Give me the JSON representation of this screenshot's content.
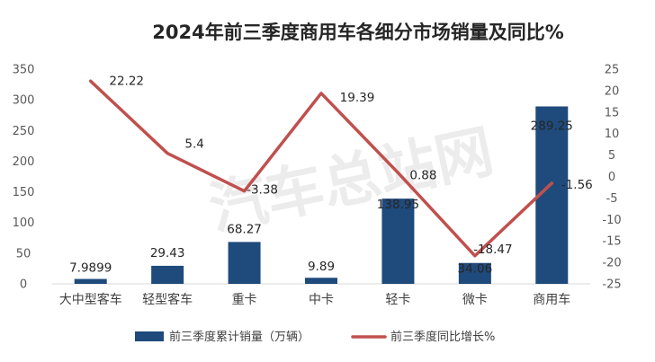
{
  "chart_data": {
    "type": "bar",
    "title": "2024年前三季度商用车各细分市场销量及同比%",
    "categories": [
      "大中型客车",
      "轻型客车",
      "重卡",
      "中卡",
      "轻卡",
      "微卡",
      "商用车"
    ],
    "series": [
      {
        "name": "前三季度累计销量（万辆）",
        "type": "bar",
        "axis": "left",
        "values": [
          7.9899,
          29.43,
          68.27,
          9.89,
          138.95,
          34.06,
          289.25
        ],
        "labels": [
          "7.9899",
          "29.43",
          "68.27",
          "9.89",
          "138.95",
          "34.06",
          "289.25"
        ],
        "color": "#1f4a7c"
      },
      {
        "name": "前三季度同比增长%",
        "type": "line",
        "axis": "right",
        "values": [
          22.22,
          5.4,
          -3.38,
          19.39,
          0.88,
          -18.47,
          -1.56
        ],
        "labels": [
          "22.22",
          "5.4",
          "-3.38",
          "19.39",
          "0.88",
          "-18.47",
          "-1.56"
        ],
        "color": "#c0504d"
      }
    ],
    "y_left": {
      "min": 0,
      "max": 350,
      "ticks": [
        "0",
        "50",
        "100",
        "150",
        "200",
        "250",
        "300",
        "350"
      ]
    },
    "y_right": {
      "min": -25,
      "max": 25,
      "ticks": [
        "-25",
        "-20",
        "-15",
        "-10",
        "-5",
        "0",
        "5",
        "10",
        "15",
        "20",
        "25"
      ]
    },
    "grid": false,
    "legend_position": "bottom"
  },
  "watermark": "汽车总站网"
}
